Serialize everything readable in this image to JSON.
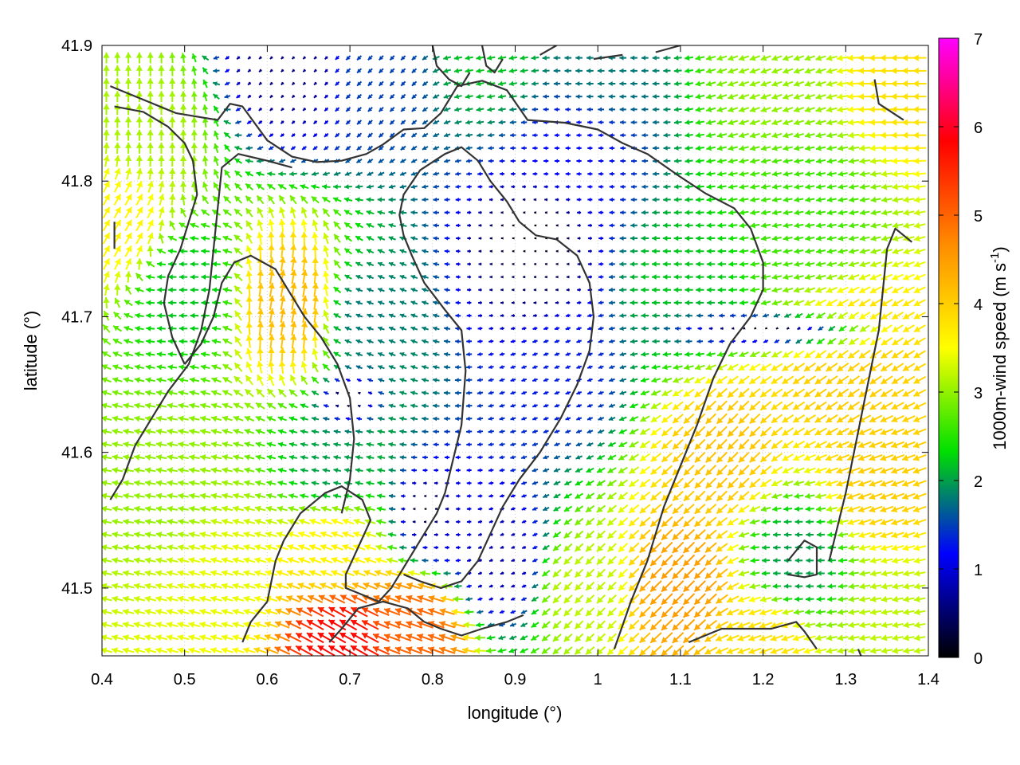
{
  "chart_data": {
    "type": "vector-field",
    "xlabel": "longitude (°)",
    "ylabel": "latitude (°)",
    "xlim": [
      0.4,
      1.4
    ],
    "ylim": [
      41.45,
      41.9
    ],
    "x_ticks": [
      "0.4",
      "0.5",
      "0.6",
      "0.7",
      "0.8",
      "0.9",
      "1",
      "1.1",
      "1.2",
      "1.3",
      "1.4"
    ],
    "y_ticks": [
      "41.5",
      "41.6",
      "41.7",
      "41.8",
      "41.9"
    ],
    "colorbar": {
      "label_main": "1000m-wind speed (m s",
      "label_exp": "-1",
      "label_end": ")",
      "range": [
        0,
        7
      ],
      "ticks": [
        "0",
        "1",
        "2",
        "3",
        "4",
        "5",
        "6",
        "7"
      ],
      "colormap": [
        "#000000",
        "#0000ff",
        "#00e000",
        "#ffff00",
        "#ff8c00",
        "#ff0000",
        "#ff00ff"
      ]
    },
    "grid": true,
    "vector_spacing": {
      "dlon": 0.0133,
      "dlat": 0.0095
    },
    "wind_regions": [
      {
        "lon": 0.92,
        "lat": 41.74,
        "speed": 0.5,
        "dir_deg": 180
      },
      {
        "lon": 0.97,
        "lat": 41.82,
        "speed": 1.2,
        "dir_deg": 180
      },
      {
        "lon": 0.95,
        "lat": 41.66,
        "speed": 1.3,
        "dir_deg": 200
      },
      {
        "lon": 0.88,
        "lat": 41.52,
        "speed": 0.8,
        "dir_deg": 200
      },
      {
        "lon": 0.81,
        "lat": 41.55,
        "speed": 1.0,
        "dir_deg": 180
      },
      {
        "lon": 0.68,
        "lat": 41.59,
        "speed": 2.0,
        "dir_deg": 170
      },
      {
        "lon": 0.72,
        "lat": 41.7,
        "speed": 1.8,
        "dir_deg": 160
      },
      {
        "lon": 0.5,
        "lat": 41.72,
        "speed": 2.2,
        "dir_deg": 180
      },
      {
        "lon": 0.45,
        "lat": 41.84,
        "speed": 3.1,
        "dir_deg": 90
      },
      {
        "lon": 0.42,
        "lat": 41.77,
        "speed": 3.6,
        "dir_deg": 60
      },
      {
        "lon": 0.63,
        "lat": 41.71,
        "speed": 4.2,
        "dir_deg": 80
      },
      {
        "lon": 0.48,
        "lat": 41.58,
        "speed": 3.0,
        "dir_deg": 170
      },
      {
        "lon": 0.55,
        "lat": 41.5,
        "speed": 3.4,
        "dir_deg": 165
      },
      {
        "lon": 0.68,
        "lat": 41.53,
        "speed": 3.6,
        "dir_deg": 160
      },
      {
        "lon": 0.69,
        "lat": 41.46,
        "speed": 5.8,
        "dir_deg": 150
      },
      {
        "lon": 0.78,
        "lat": 41.47,
        "speed": 5.0,
        "dir_deg": 160
      },
      {
        "lon": 0.73,
        "lat": 41.88,
        "speed": 1.5,
        "dir_deg": 225
      },
      {
        "lon": 0.63,
        "lat": 41.89,
        "speed": 0.6,
        "dir_deg": 225
      },
      {
        "lon": 0.87,
        "lat": 41.9,
        "speed": 2.2,
        "dir_deg": 190
      },
      {
        "lon": 1.0,
        "lat": 41.89,
        "speed": 1.8,
        "dir_deg": 180
      },
      {
        "lon": 1.22,
        "lat": 41.88,
        "speed": 3.0,
        "dir_deg": 200
      },
      {
        "lon": 1.37,
        "lat": 41.88,
        "speed": 3.8,
        "dir_deg": 180
      },
      {
        "lon": 1.25,
        "lat": 41.78,
        "speed": 2.6,
        "dir_deg": 190
      },
      {
        "lon": 1.1,
        "lat": 41.72,
        "speed": 2.2,
        "dir_deg": 180
      },
      {
        "lon": 1.3,
        "lat": 41.66,
        "speed": 4.0,
        "dir_deg": 215
      },
      {
        "lon": 1.15,
        "lat": 41.6,
        "speed": 4.1,
        "dir_deg": 225
      },
      {
        "lon": 1.34,
        "lat": 41.58,
        "speed": 4.0,
        "dir_deg": 200
      },
      {
        "lon": 1.24,
        "lat": 41.52,
        "speed": 2.0,
        "dir_deg": 180
      },
      {
        "lon": 1.1,
        "lat": 41.5,
        "speed": 4.5,
        "dir_deg": 225
      },
      {
        "lon": 1.2,
        "lat": 41.46,
        "speed": 3.8,
        "dir_deg": 200
      },
      {
        "lon": 0.98,
        "lat": 41.5,
        "speed": 3.2,
        "dir_deg": 225
      },
      {
        "lon": 1.36,
        "lat": 41.47,
        "speed": 3.2,
        "dir_deg": 190
      }
    ],
    "calm_regions": [
      {
        "lon": 0.92,
        "lat": 41.76,
        "rlon": 0.06,
        "rlat": 0.035
      },
      {
        "lon": 1.2,
        "lat": 41.69,
        "rlon": 0.12,
        "rlat": 0.015
      },
      {
        "lon": 0.79,
        "lat": 41.56,
        "rlon": 0.03,
        "rlat": 0.02
      },
      {
        "lon": 0.7,
        "lat": 41.64,
        "rlon": 0.04,
        "rlat": 0.02
      }
    ],
    "contours": [
      [
        [
          0.41,
          41.87
        ],
        [
          0.49,
          41.85
        ],
        [
          0.54,
          41.845
        ],
        [
          0.555,
          41.857
        ],
        [
          0.57,
          41.855
        ],
        [
          0.6,
          41.83
        ],
        [
          0.63,
          41.818
        ],
        [
          0.66,
          41.814
        ],
        [
          0.69,
          41.815
        ],
        [
          0.72,
          41.82
        ],
        [
          0.74,
          41.827
        ],
        [
          0.765,
          41.838
        ],
        [
          0.79,
          41.839
        ],
        [
          0.81,
          41.85
        ],
        [
          0.83,
          41.87
        ],
        [
          0.86,
          41.874
        ],
        [
          0.89,
          41.867
        ],
        [
          0.915,
          41.845
        ],
        [
          0.96,
          41.843
        ],
        [
          1.0,
          41.838
        ],
        [
          1.03,
          41.828
        ],
        [
          1.06,
          41.82
        ],
        [
          1.1,
          41.803
        ],
        [
          1.13,
          41.791
        ],
        [
          1.165,
          41.78
        ],
        [
          1.185,
          41.765
        ],
        [
          1.2,
          41.74
        ],
        [
          1.2,
          41.72
        ],
        [
          1.185,
          41.7
        ],
        [
          1.16,
          41.68
        ],
        [
          1.14,
          41.655
        ],
        [
          1.12,
          41.62
        ],
        [
          1.1,
          41.59
        ],
        [
          1.08,
          41.56
        ],
        [
          1.06,
          41.52
        ],
        [
          1.04,
          41.49
        ],
        [
          1.02,
          41.455
        ]
      ],
      [
        [
          0.415,
          41.855
        ],
        [
          0.45,
          41.851
        ],
        [
          0.48,
          41.84
        ],
        [
          0.5,
          41.828
        ],
        [
          0.51,
          41.815
        ],
        [
          0.515,
          41.79
        ],
        [
          0.505,
          41.77
        ],
        [
          0.495,
          41.75
        ],
        [
          0.48,
          41.73
        ],
        [
          0.475,
          41.71
        ],
        [
          0.485,
          41.685
        ],
        [
          0.5,
          41.665
        ]
      ],
      [
        [
          0.57,
          41.46
        ],
        [
          0.58,
          41.475
        ],
        [
          0.6,
          41.49
        ],
        [
          0.61,
          41.52
        ],
        [
          0.62,
          41.535
        ],
        [
          0.64,
          41.555
        ],
        [
          0.67,
          41.57
        ],
        [
          0.69,
          41.575
        ],
        [
          0.715,
          41.565
        ],
        [
          0.725,
          41.55
        ],
        [
          0.71,
          41.53
        ],
        [
          0.695,
          41.51
        ],
        [
          0.695,
          41.5
        ],
        [
          0.715,
          41.495
        ],
        [
          0.735,
          41.49
        ],
        [
          0.75,
          41.5
        ],
        [
          0.77,
          41.52
        ],
        [
          0.79,
          41.54
        ],
        [
          0.805,
          41.555
        ],
        [
          0.815,
          41.57
        ],
        [
          0.825,
          41.595
        ],
        [
          0.835,
          41.62
        ],
        [
          0.84,
          41.66
        ],
        [
          0.835,
          41.69
        ],
        [
          0.815,
          41.705
        ],
        [
          0.79,
          41.725
        ],
        [
          0.775,
          41.745
        ],
        [
          0.765,
          41.76
        ],
        [
          0.76,
          41.775
        ],
        [
          0.765,
          41.79
        ],
        [
          0.785,
          41.808
        ],
        [
          0.815,
          41.82
        ],
        [
          0.835,
          41.825
        ],
        [
          0.855,
          41.815
        ],
        [
          0.87,
          41.8
        ],
        [
          0.89,
          41.785
        ],
        [
          0.905,
          41.77
        ],
        [
          0.925,
          41.76
        ],
        [
          0.95,
          41.757
        ],
        [
          0.975,
          41.745
        ],
        [
          0.99,
          41.725
        ],
        [
          0.995,
          41.7
        ],
        [
          0.99,
          41.675
        ],
        [
          0.975,
          41.65
        ],
        [
          0.955,
          41.625
        ],
        [
          0.93,
          41.6
        ],
        [
          0.905,
          41.58
        ],
        [
          0.885,
          41.56
        ],
        [
          0.87,
          41.54
        ],
        [
          0.855,
          41.52
        ],
        [
          0.835,
          41.505
        ],
        [
          0.81,
          41.5
        ],
        [
          0.785,
          41.505
        ],
        [
          0.765,
          41.51
        ]
      ],
      [
        [
          0.41,
          41.565
        ],
        [
          0.425,
          41.58
        ],
        [
          0.44,
          41.605
        ],
        [
          0.46,
          41.625
        ],
        [
          0.48,
          41.645
        ],
        [
          0.505,
          41.665
        ],
        [
          0.52,
          41.69
        ],
        [
          0.53,
          41.72
        ],
        [
          0.535,
          41.75
        ],
        [
          0.54,
          41.78
        ],
        [
          0.545,
          41.81
        ],
        [
          0.565,
          41.82
        ],
        [
          0.6,
          41.815
        ],
        [
          0.63,
          41.81
        ]
      ],
      [
        [
          0.69,
          41.555
        ],
        [
          0.7,
          41.58
        ],
        [
          0.705,
          41.61
        ],
        [
          0.7,
          41.64
        ],
        [
          0.685,
          41.665
        ],
        [
          0.665,
          41.685
        ],
        [
          0.645,
          41.7
        ],
        [
          0.625,
          41.72
        ],
        [
          0.61,
          41.735
        ],
        [
          0.58,
          41.745
        ],
        [
          0.56,
          41.74
        ],
        [
          0.545,
          41.725
        ],
        [
          0.535,
          41.7
        ],
        [
          0.52,
          41.68
        ],
        [
          0.5,
          41.665
        ]
      ],
      [
        [
          0.675,
          41.46
        ],
        [
          0.69,
          41.47
        ],
        [
          0.71,
          41.485
        ],
        [
          0.74,
          41.49
        ],
        [
          0.77,
          41.485
        ],
        [
          0.79,
          41.475
        ],
        [
          0.81,
          41.47
        ],
        [
          0.835,
          41.465
        ],
        [
          0.86,
          41.47
        ],
        [
          0.89,
          41.475
        ],
        [
          0.91,
          41.48
        ]
      ],
      [
        [
          0.8,
          41.9
        ],
        [
          0.805,
          41.885
        ],
        [
          0.82,
          41.875
        ],
        [
          0.835,
          41.87
        ],
        [
          0.845,
          41.88
        ]
      ],
      [
        [
          0.86,
          41.9
        ],
        [
          0.865,
          41.885
        ],
        [
          0.875,
          41.88
        ],
        [
          0.885,
          41.89
        ]
      ],
      [
        [
          0.93,
          41.893
        ],
        [
          0.95,
          41.9
        ]
      ],
      [
        [
          0.995,
          41.89
        ],
        [
          1.03,
          41.893
        ]
      ],
      [
        [
          1.07,
          41.895
        ],
        [
          1.1,
          41.9
        ]
      ],
      [
        [
          1.37,
          41.845
        ],
        [
          1.34,
          41.857
        ],
        [
          1.335,
          41.875
        ]
      ],
      [
        [
          1.38,
          41.755
        ],
        [
          1.36,
          41.765
        ],
        [
          1.35,
          41.75
        ],
        [
          1.345,
          41.72
        ],
        [
          1.34,
          41.69
        ],
        [
          1.33,
          41.66
        ],
        [
          1.32,
          41.63
        ],
        [
          1.31,
          41.6
        ],
        [
          1.3,
          41.57
        ],
        [
          1.29,
          41.545
        ],
        [
          1.28,
          41.52
        ]
      ],
      [
        [
          1.23,
          41.52
        ],
        [
          1.25,
          41.535
        ],
        [
          1.265,
          41.53
        ],
        [
          1.265,
          41.51
        ],
        [
          1.25,
          41.508
        ],
        [
          1.23,
          41.51
        ]
      ],
      [
        [
          1.11,
          41.46
        ],
        [
          1.13,
          41.465
        ],
        [
          1.15,
          41.47
        ],
        [
          1.18,
          41.47
        ],
        [
          1.21,
          41.47
        ],
        [
          1.24,
          41.475
        ],
        [
          1.25,
          41.468
        ],
        [
          1.265,
          41.455
        ]
      ],
      [
        [
          1.315,
          41.455
        ],
        [
          1.32,
          41.448
        ]
      ],
      [
        [
          0.415,
          41.75
        ],
        [
          0.415,
          41.77
        ]
      ]
    ]
  }
}
